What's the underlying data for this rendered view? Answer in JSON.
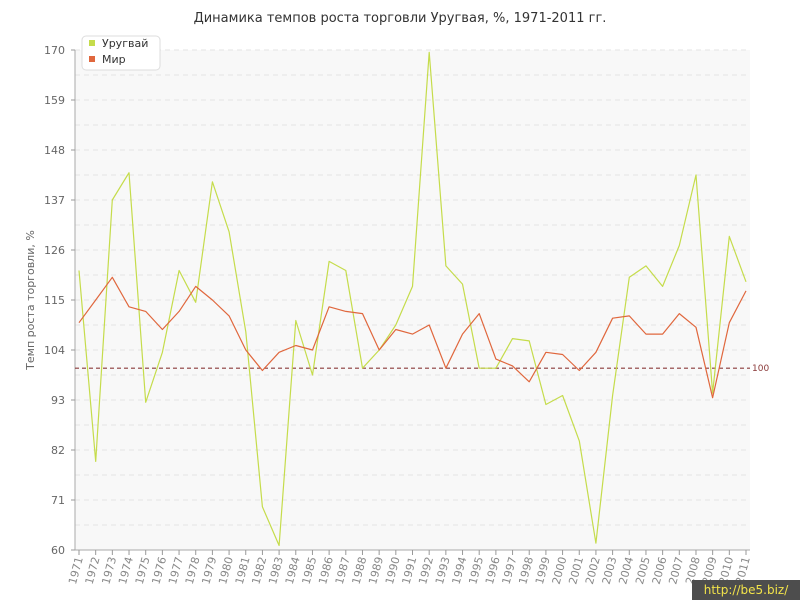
{
  "chart_data": {
    "type": "line",
    "title": "Динамика темпов роста торговли Уругвая, %, 1971-2011 гг.",
    "xlabel": "",
    "ylabel": "Темп роста торговли, %",
    "ylim": [
      60,
      170
    ],
    "yticks": [
      60,
      71,
      82,
      93,
      104,
      115,
      126,
      137,
      148,
      159,
      170
    ],
    "x": [
      "1971",
      "1972",
      "1973",
      "1974",
      "1975",
      "1976",
      "1977",
      "1978",
      "1979",
      "1980",
      "1981",
      "1982",
      "1983",
      "1984",
      "1985",
      "1986",
      "1987",
      "1988",
      "1989",
      "1990",
      "1991",
      "1992",
      "1993",
      "1994",
      "1995",
      "1996",
      "1997",
      "1998",
      "1999",
      "2000",
      "2001",
      "2002",
      "2003",
      "2004",
      "2005",
      "2006",
      "2007",
      "2008",
      "2009",
      "2010",
      "2011"
    ],
    "series": [
      {
        "name": "Уругвай",
        "color": "#c5dc4b",
        "values": [
          121.5,
          79.5,
          137,
          143,
          92.5,
          103.5,
          121.5,
          114.5,
          141,
          130,
          108,
          69.5,
          61,
          110.5,
          98.5,
          123.5,
          121.5,
          100,
          104,
          109.5,
          118,
          169.5,
          122.5,
          118.5,
          100,
          100,
          106.5,
          106,
          92,
          94,
          84,
          61.5,
          94,
          120,
          122.5,
          118,
          127,
          142.5,
          94.5,
          129,
          119
        ]
      },
      {
        "name": "Мир",
        "color": "#e0673d",
        "values": [
          110,
          115,
          120,
          113.5,
          112.5,
          108.5,
          112.5,
          118,
          115,
          111.5,
          104,
          99.5,
          103.5,
          105,
          104,
          113.5,
          112.5,
          112,
          104,
          108.5,
          107.5,
          109.5,
          100,
          107.5,
          112,
          102,
          100.5,
          97,
          103.5,
          103,
          99.5,
          103.5,
          111,
          111.5,
          107.5,
          107.5,
          112,
          109,
          93.5,
          110,
          117
        ]
      }
    ],
    "reference_line": {
      "value": 100,
      "label": "100",
      "color": "#8b3a3a"
    },
    "grid": true,
    "legend": "top-left"
  },
  "watermark": "http://be5.biz/"
}
